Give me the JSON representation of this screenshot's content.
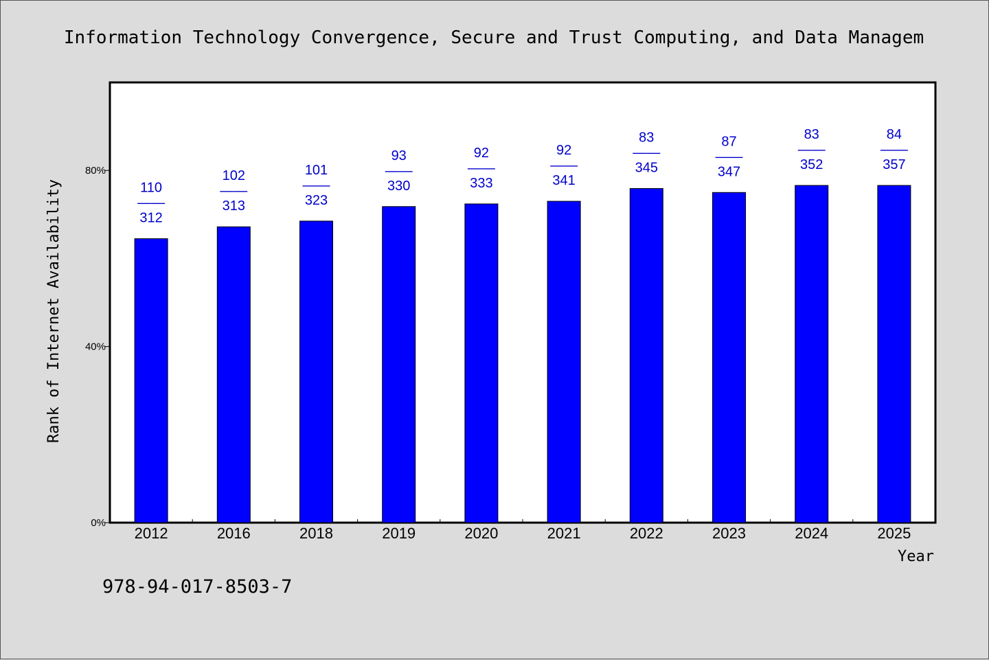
{
  "chart_data": {
    "type": "bar",
    "title": "Information Technology Convergence, Secure and Trust Computing, and Data Managem",
    "xlabel": "Year",
    "ylabel": "Rank of Internet Availability",
    "ylim": [
      0,
      100
    ],
    "yticks": [
      "0%",
      "40%",
      "80%"
    ],
    "yticks_values": [
      0,
      40,
      80
    ],
    "categories": [
      "2012",
      "2016",
      "2018",
      "2019",
      "2020",
      "2021",
      "2022",
      "2023",
      "2024",
      "2025"
    ],
    "values": [
      64.5,
      67.2,
      68.5,
      71.8,
      72.4,
      73.0,
      75.9,
      75.0,
      76.6,
      76.6
    ],
    "labels_top": [
      "110",
      "102",
      "101",
      "93",
      "92",
      "92",
      "83",
      "87",
      "83",
      "84"
    ],
    "labels_bottom": [
      "312",
      "313",
      "323",
      "330",
      "333",
      "341",
      "345",
      "347",
      "352",
      "357"
    ],
    "label_separator": "——",
    "bar_color": "#0000ff",
    "label_color": "#0000cc",
    "grid": false,
    "legend": "none"
  },
  "footer": {
    "isbn": "978-94-017-8503-7"
  }
}
